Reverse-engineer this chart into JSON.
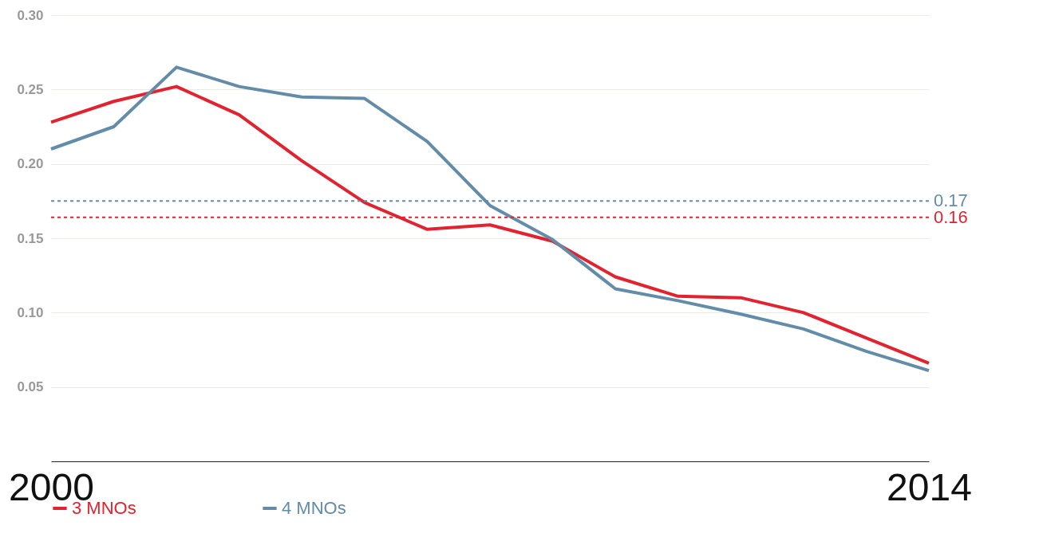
{
  "chart_data": {
    "type": "line",
    "x": [
      2000,
      2001,
      2002,
      2003,
      2004,
      2005,
      2006,
      2007,
      2008,
      2009,
      2010,
      2011,
      2012,
      2013,
      2014
    ],
    "series": [
      {
        "name": "3 MNOs",
        "color": "#e2232f",
        "values": [
          0.228,
          0.242,
          0.252,
          0.233,
          0.202,
          0.174,
          0.156,
          0.159,
          0.148,
          0.124,
          0.111,
          0.11,
          0.1,
          0.083,
          0.066
        ]
      },
      {
        "name": "4 MNOs",
        "color": "#628ca8",
        "values": [
          0.21,
          0.225,
          0.265,
          0.252,
          0.245,
          0.244,
          0.215,
          0.172,
          0.149,
          0.116,
          0.108,
          0.099,
          0.089,
          0.074,
          0.061
        ]
      }
    ],
    "xlim": [
      2000,
      2014
    ],
    "xticks": [
      2000,
      2014
    ],
    "ylim": [
      0,
      0.3
    ],
    "yticks": [
      {
        "value": 0.05,
        "label": "0.05"
      },
      {
        "value": 0.1,
        "label": "0.10"
      },
      {
        "value": 0.15,
        "label": "0.15"
      },
      {
        "value": 0.2,
        "label": "0.20"
      },
      {
        "value": 0.25,
        "label": "0.25"
      },
      {
        "value": 0.3,
        "label": "0.30"
      }
    ],
    "ref_lines": [
      {
        "axis": "y",
        "value": 0.175,
        "label": "0.17",
        "color": "#628ca8",
        "line_style": "dashed"
      },
      {
        "axis": "y",
        "value": 0.164,
        "label": "0.16",
        "color": "#e2232f",
        "line_style": "dashed"
      }
    ],
    "grid": "y",
    "legend": "bottom",
    "marker": "none",
    "line_style": "solid"
  }
}
